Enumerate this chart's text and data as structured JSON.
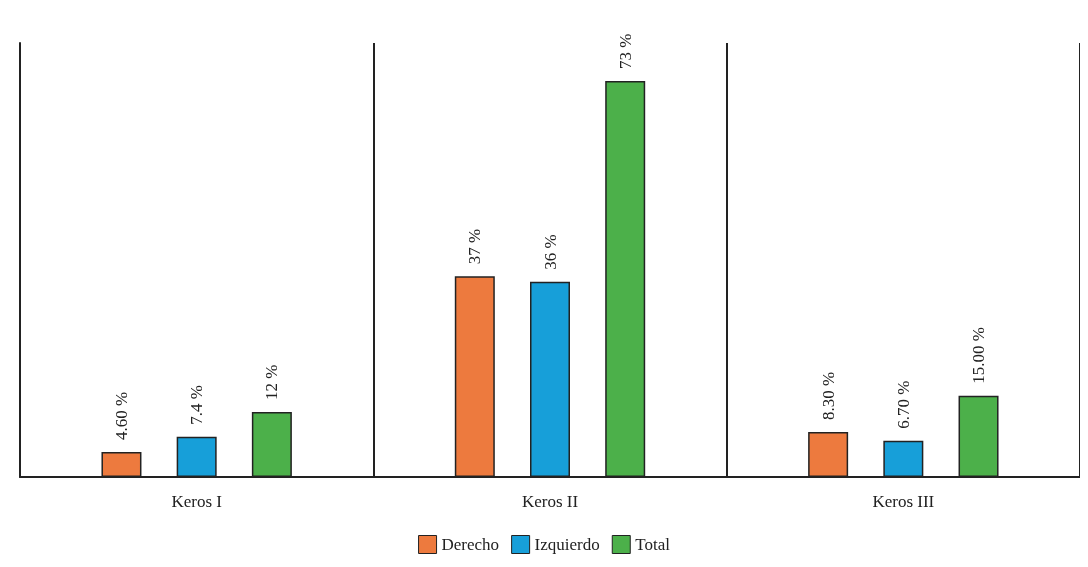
{
  "chart_data": {
    "type": "bar",
    "categories": [
      "Keros I",
      "Keros II",
      "Keros III"
    ],
    "series": [
      {
        "name": "Derecho",
        "color": "#ed7a3e",
        "values": [
          4.6,
          37,
          8.3
        ],
        "value_labels": [
          "4.60 %",
          "37 %",
          "8.30 %"
        ]
      },
      {
        "name": "Izquierdo",
        "color": "#179fd9",
        "values": [
          7.4,
          36,
          6.7
        ],
        "value_labels": [
          "7.4 %",
          "36 %",
          "6.70 %"
        ]
      },
      {
        "name": "Total",
        "color": "#4cb04a",
        "values": [
          12,
          73,
          15
        ],
        "value_labels": [
          "12 %",
          "73 %",
          "15.00 %"
        ]
      }
    ],
    "ylim": [
      0,
      80
    ],
    "grid": "x",
    "legend": "bottom",
    "tick_labels": "x"
  }
}
